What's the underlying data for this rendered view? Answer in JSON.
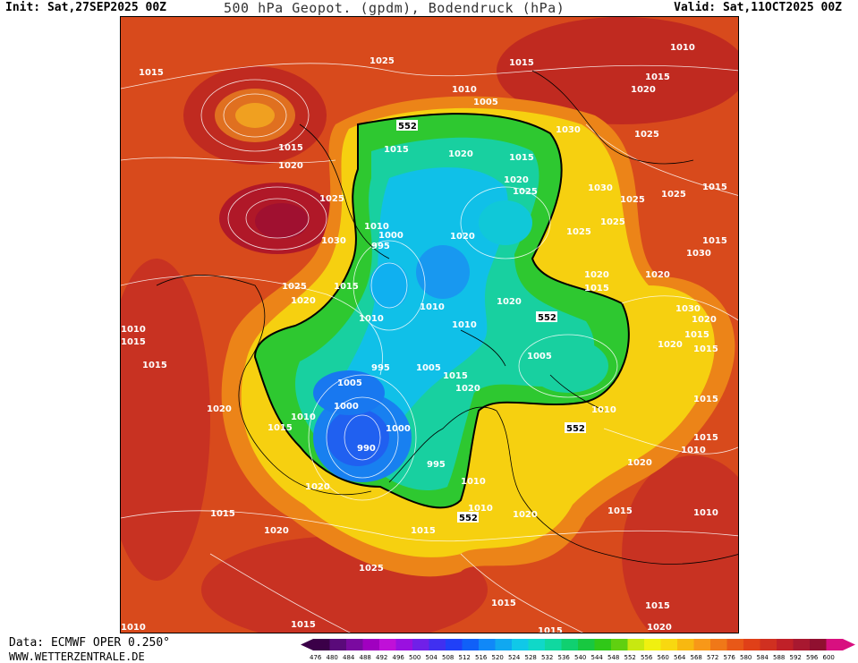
{
  "header": {
    "init": "Init: Sat,27SEP2025 00Z",
    "title": "500 hPa Geopot. (gpdm), Bodendruck (hPa)",
    "valid": "Valid: Sat,11OCT2025 00Z"
  },
  "footer": {
    "data_source": "Data: ECMWF OPER 0.250°",
    "website": "WWW.WETTERZENTRALE.DE"
  },
  "colorbar": {
    "values": [
      "476",
      "480",
      "484",
      "488",
      "492",
      "496",
      "500",
      "504",
      "508",
      "512",
      "516",
      "520",
      "524",
      "528",
      "532",
      "536",
      "540",
      "544",
      "548",
      "552",
      "556",
      "560",
      "564",
      "568",
      "572",
      "576",
      "580",
      "584",
      "588",
      "592",
      "596",
      "600"
    ],
    "colors": [
      "#3b0048",
      "#5a0a7a",
      "#7a0aa0",
      "#a000c0",
      "#c010d8",
      "#9a10e0",
      "#7020e8",
      "#4030f0",
      "#2040f8",
      "#1060f8",
      "#1088f8",
      "#10a8f0",
      "#10c8e8",
      "#10d8c8",
      "#10d8a0",
      "#10d070",
      "#18c840",
      "#30c818",
      "#60d010",
      "#c8e810",
      "#f0f010",
      "#f8d810",
      "#f8b810",
      "#f89818",
      "#f07818",
      "#e85818",
      "#e04018",
      "#d03020",
      "#c02028",
      "#a81830",
      "#901030",
      "#d81080"
    ]
  },
  "map": {
    "pressure_labels": [
      {
        "text": "1015",
        "pos": "p1"
      },
      {
        "text": "1025",
        "pos": "p2"
      },
      {
        "text": "1015",
        "pos": "p3"
      },
      {
        "text": "1010",
        "pos": "p4"
      },
      {
        "text": "1010",
        "pos": "p5"
      },
      {
        "text": "1005",
        "pos": "p6"
      },
      {
        "text": "1015",
        "pos": "p7"
      },
      {
        "text": "1020",
        "pos": "p8"
      },
      {
        "text": "1030",
        "pos": "p9"
      },
      {
        "text": "1025",
        "pos": "p10"
      },
      {
        "text": "1015",
        "pos": "p11"
      },
      {
        "text": "1020",
        "pos": "p12"
      },
      {
        "text": "1015",
        "pos": "p13"
      },
      {
        "text": "1020",
        "pos": "p14"
      },
      {
        "text": "1015",
        "pos": "p15"
      },
      {
        "text": "1020",
        "pos": "p16"
      },
      {
        "text": "1025",
        "pos": "p17"
      },
      {
        "text": "1030",
        "pos": "p18"
      },
      {
        "text": "1025",
        "pos": "p19"
      },
      {
        "text": "1025",
        "pos": "p20"
      },
      {
        "text": "1015",
        "pos": "p21"
      },
      {
        "text": "1025",
        "pos": "p22"
      },
      {
        "text": "1010",
        "pos": "p23"
      },
      {
        "text": "1000",
        "pos": "p24"
      },
      {
        "text": "995",
        "pos": "p25"
      },
      {
        "text": "1030",
        "pos": "p26"
      },
      {
        "text": "1020",
        "pos": "p27"
      },
      {
        "text": "1025",
        "pos": "p28"
      },
      {
        "text": "1030",
        "pos": "p29"
      },
      {
        "text": "1025",
        "pos": "p30"
      },
      {
        "text": "1020",
        "pos": "p31"
      },
      {
        "text": "1020",
        "pos": "p32"
      },
      {
        "text": "1015",
        "pos": "p33"
      },
      {
        "text": "1010",
        "pos": "p34"
      },
      {
        "text": "1010",
        "pos": "p35"
      },
      {
        "text": "1020",
        "pos": "p36"
      },
      {
        "text": "1015",
        "pos": "p37"
      },
      {
        "text": "1005",
        "pos": "p38"
      },
      {
        "text": "995",
        "pos": "p39"
      },
      {
        "text": "1005",
        "pos": "p40"
      },
      {
        "text": "1015",
        "pos": "p41"
      },
      {
        "text": "1020",
        "pos": "p42"
      },
      {
        "text": "1000",
        "pos": "p43"
      },
      {
        "text": "1010",
        "pos": "p44"
      },
      {
        "text": "1000",
        "pos": "p45"
      },
      {
        "text": "990",
        "pos": "p46"
      },
      {
        "text": "995",
        "pos": "p47"
      },
      {
        "text": "1015",
        "pos": "p48"
      },
      {
        "text": "1005",
        "pos": "p49"
      },
      {
        "text": "1010",
        "pos": "p50"
      },
      {
        "text": "1010",
        "pos": "p51"
      },
      {
        "text": "1015",
        "pos": "p52"
      },
      {
        "text": "1020",
        "pos": "p53"
      },
      {
        "text": "1010",
        "pos": "p54"
      },
      {
        "text": "1015",
        "pos": "p55"
      },
      {
        "text": "1020",
        "pos": "p56"
      },
      {
        "text": "1025",
        "pos": "p57"
      },
      {
        "text": "1030",
        "pos": "p58"
      },
      {
        "text": "1020",
        "pos": "p59"
      },
      {
        "text": "1015",
        "pos": "p60"
      },
      {
        "text": "1010",
        "pos": "p61"
      },
      {
        "text": "1015",
        "pos": "p62"
      },
      {
        "text": "1010",
        "pos": "p63"
      },
      {
        "text": "1020",
        "pos": "p64"
      },
      {
        "text": "1020",
        "pos": "p65"
      },
      {
        "text": "1015",
        "pos": "p66"
      },
      {
        "text": "1015",
        "pos": "p67"
      },
      {
        "text": "1020",
        "pos": "p68"
      },
      {
        "text": "1015",
        "pos": "p69"
      },
      {
        "text": "1025",
        "pos": "p70"
      },
      {
        "text": "1015",
        "pos": "p71"
      },
      {
        "text": "1020",
        "pos": "p72"
      },
      {
        "text": "1015",
        "pos": "p73"
      },
      {
        "text": "1015",
        "pos": "p74"
      },
      {
        "text": "1010",
        "pos": "p75"
      },
      {
        "text": "1010",
        "pos": "p76"
      },
      {
        "text": "1015",
        "pos": "p77"
      },
      {
        "text": "1010",
        "pos": "p78"
      },
      {
        "text": "1015",
        "pos": "p79"
      },
      {
        "text": "1010",
        "pos": "p80"
      },
      {
        "text": "1015",
        "pos": "p81"
      },
      {
        "text": "1020",
        "pos": "p82"
      },
      {
        "text": "1015",
        "pos": "p83"
      },
      {
        "text": "1010",
        "pos": "p84"
      },
      {
        "text": "1020",
        "pos": "p85"
      }
    ],
    "z500_labels": [
      {
        "text": "552",
        "pos": "z1"
      },
      {
        "text": "552",
        "pos": "z2"
      },
      {
        "text": "552",
        "pos": "z3"
      },
      {
        "text": "552",
        "pos": "z4"
      }
    ]
  }
}
